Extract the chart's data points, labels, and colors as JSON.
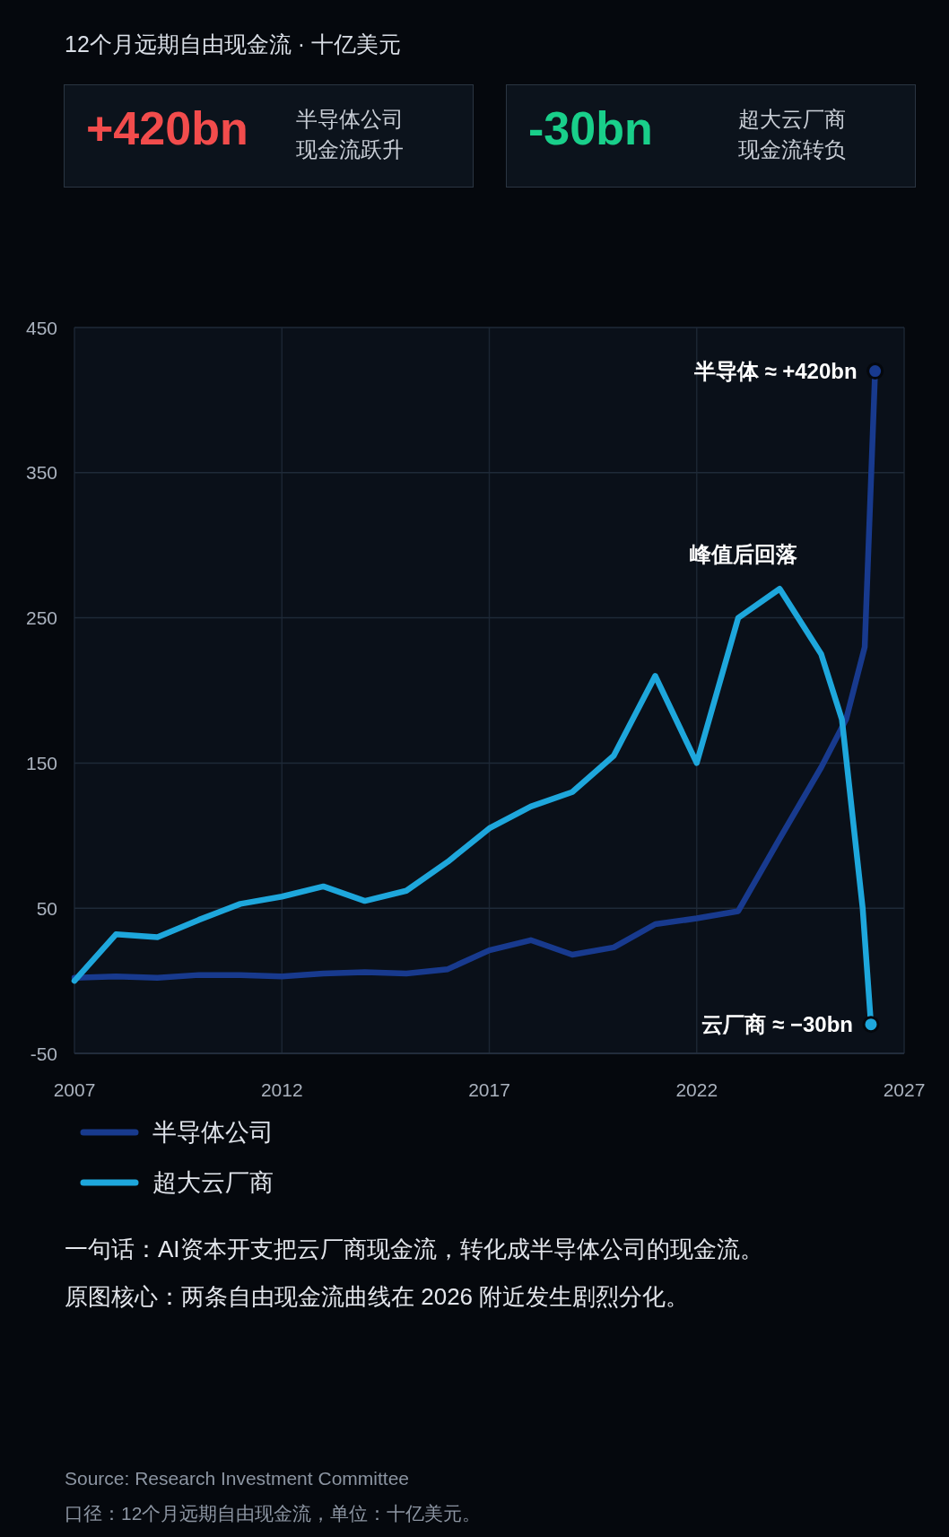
{
  "chart_data": [
    {
      "type": "line",
      "title": "12个月远期自由现金流 · 十亿美元",
      "xlim": [
        2007,
        2027
      ],
      "xticks": [
        2007,
        2012,
        2017,
        2022,
        2027
      ],
      "ylim": [
        -50,
        450
      ],
      "yticks": [
        -50,
        50,
        150,
        250,
        350,
        450
      ],
      "grid": true,
      "legend": "bottom",
      "line_style": "solid",
      "series": [
        {
          "name": "半导体公司",
          "color": "#183a8e",
          "x": [
            2007,
            2008,
            2009,
            2010,
            2011,
            2012,
            2013,
            2014,
            2015,
            2016,
            2017,
            2018,
            2019,
            2020,
            2021,
            2022,
            2023,
            2024,
            2025,
            2025.6,
            2026.05,
            2026.3
          ],
          "values": [
            2,
            3,
            2,
            4,
            4,
            3,
            5,
            6,
            5,
            8,
            21,
            28,
            18,
            23,
            39,
            43,
            48,
            98,
            147,
            180,
            230,
            420
          ]
        },
        {
          "name": "超大云厂商",
          "color": "#1ea7dc",
          "x": [
            2007,
            2008,
            2009,
            2010,
            2011,
            2012,
            2013,
            2014,
            2015,
            2016,
            2017,
            2018,
            2019,
            2020,
            2021,
            2022,
            2023,
            2024,
            2025,
            2025.5,
            2026,
            2026.2
          ],
          "values": [
            0,
            32,
            30,
            42,
            53,
            58,
            65,
            55,
            62,
            82,
            105,
            120,
            130,
            155,
            210,
            150,
            250,
            270,
            225,
            180,
            50,
            -30
          ]
        },
        {
          "type": "scatter",
          "color": "#183a8e",
          "marker": "circle",
          "x": [
            2026.3
          ],
          "values": [
            420
          ]
        },
        {
          "type": "scatter",
          "color": "#1ea7dc",
          "marker": "circle",
          "x": [
            2026.2
          ],
          "values": [
            -30
          ]
        }
      ],
      "annotations": [
        {
          "text": "半导体 ≈ +420bn",
          "x": 2026.3,
          "y": 420
        },
        {
          "text": "峰值后回落",
          "x": 2024,
          "y": 270
        },
        {
          "text": "云厂商 ≈ −30bn",
          "x": 2026.2,
          "y": -30
        },
        "一句话：AI资本开支把云厂商现金流，转化成半导体公司的现金流。",
        "原图核心：两条自由现金流曲线在 2026 附近发生剧烈分化。",
        "Source: Research Investment Committee",
        "口径：12个月远期自由现金流，单位：十亿美元。"
      ]
    },
    {
      "type": "other",
      "title": "+420bn",
      "annotations": [
        "半导体公司",
        "现金流跃升"
      ]
    },
    {
      "type": "other",
      "title": "-30bn",
      "annotations": [
        "超大云厂商",
        "现金流转负"
      ]
    }
  ]
}
